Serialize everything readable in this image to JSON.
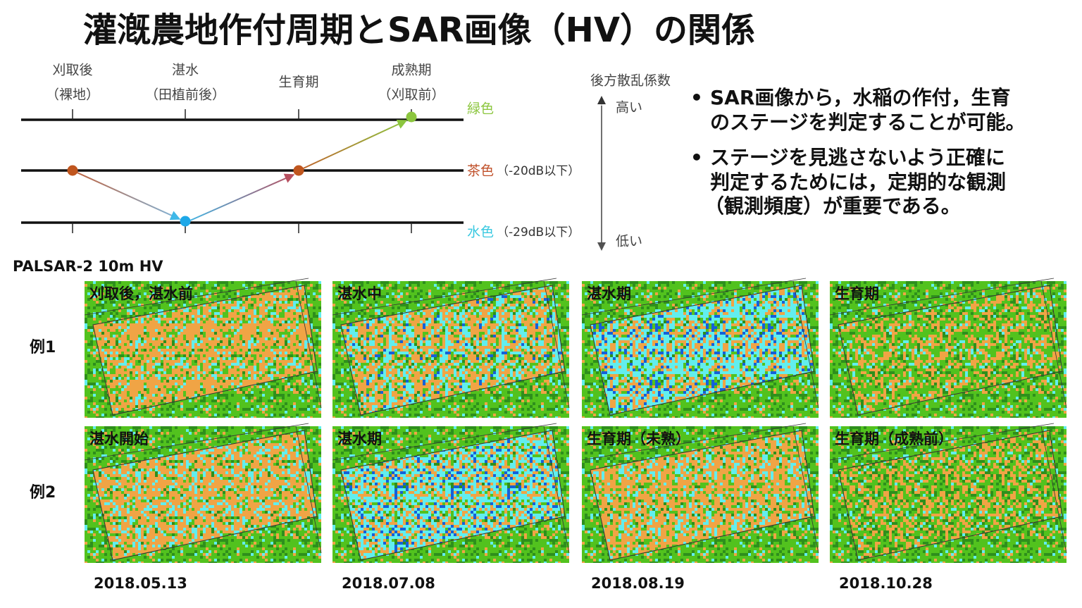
{
  "title": "灌漑農地作付周期とSAR画像（HV）の関係",
  "diagram": {
    "stages": [
      {
        "label": "刈取後",
        "sub": "（裸地）"
      },
      {
        "label": "湛水",
        "sub": "（田植前後）"
      },
      {
        "label": "生育期"
      },
      {
        "label": "成熟期",
        "sub": "（刈取前）"
      }
    ],
    "levels": [
      {
        "label": "緑色"
      },
      {
        "label": "茶色",
        "note": "（-20dB以下）"
      },
      {
        "label": "水色",
        "note": "（-29dB以下）"
      }
    ],
    "axis": {
      "title": "後方散乱係数",
      "high": "高い",
      "low": "低い"
    }
  },
  "bullets": [
    [
      "SAR画像から，水稲の作付，生育",
      "のステージを判定することが可能。"
    ],
    [
      "ステージを見逃さないよう正確に",
      "判定するためには，定期的な観測",
      "（観測頻度）が重要である。"
    ]
  ],
  "imagery": {
    "sensor": "PALSAR-2 10m HV",
    "rows": [
      {
        "label": "例1",
        "panels": [
          "刈取後，湛水前",
          "湛水中",
          "湛水期",
          "生育期"
        ]
      },
      {
        "label": "例2",
        "panels": [
          "湛水開始",
          "湛水期",
          "生育期（未熟）",
          "生育期（成熟前）"
        ]
      }
    ],
    "dates": [
      "2018.05.13",
      "2018.07.08",
      "2018.08.19",
      "2018.10.28"
    ]
  }
}
